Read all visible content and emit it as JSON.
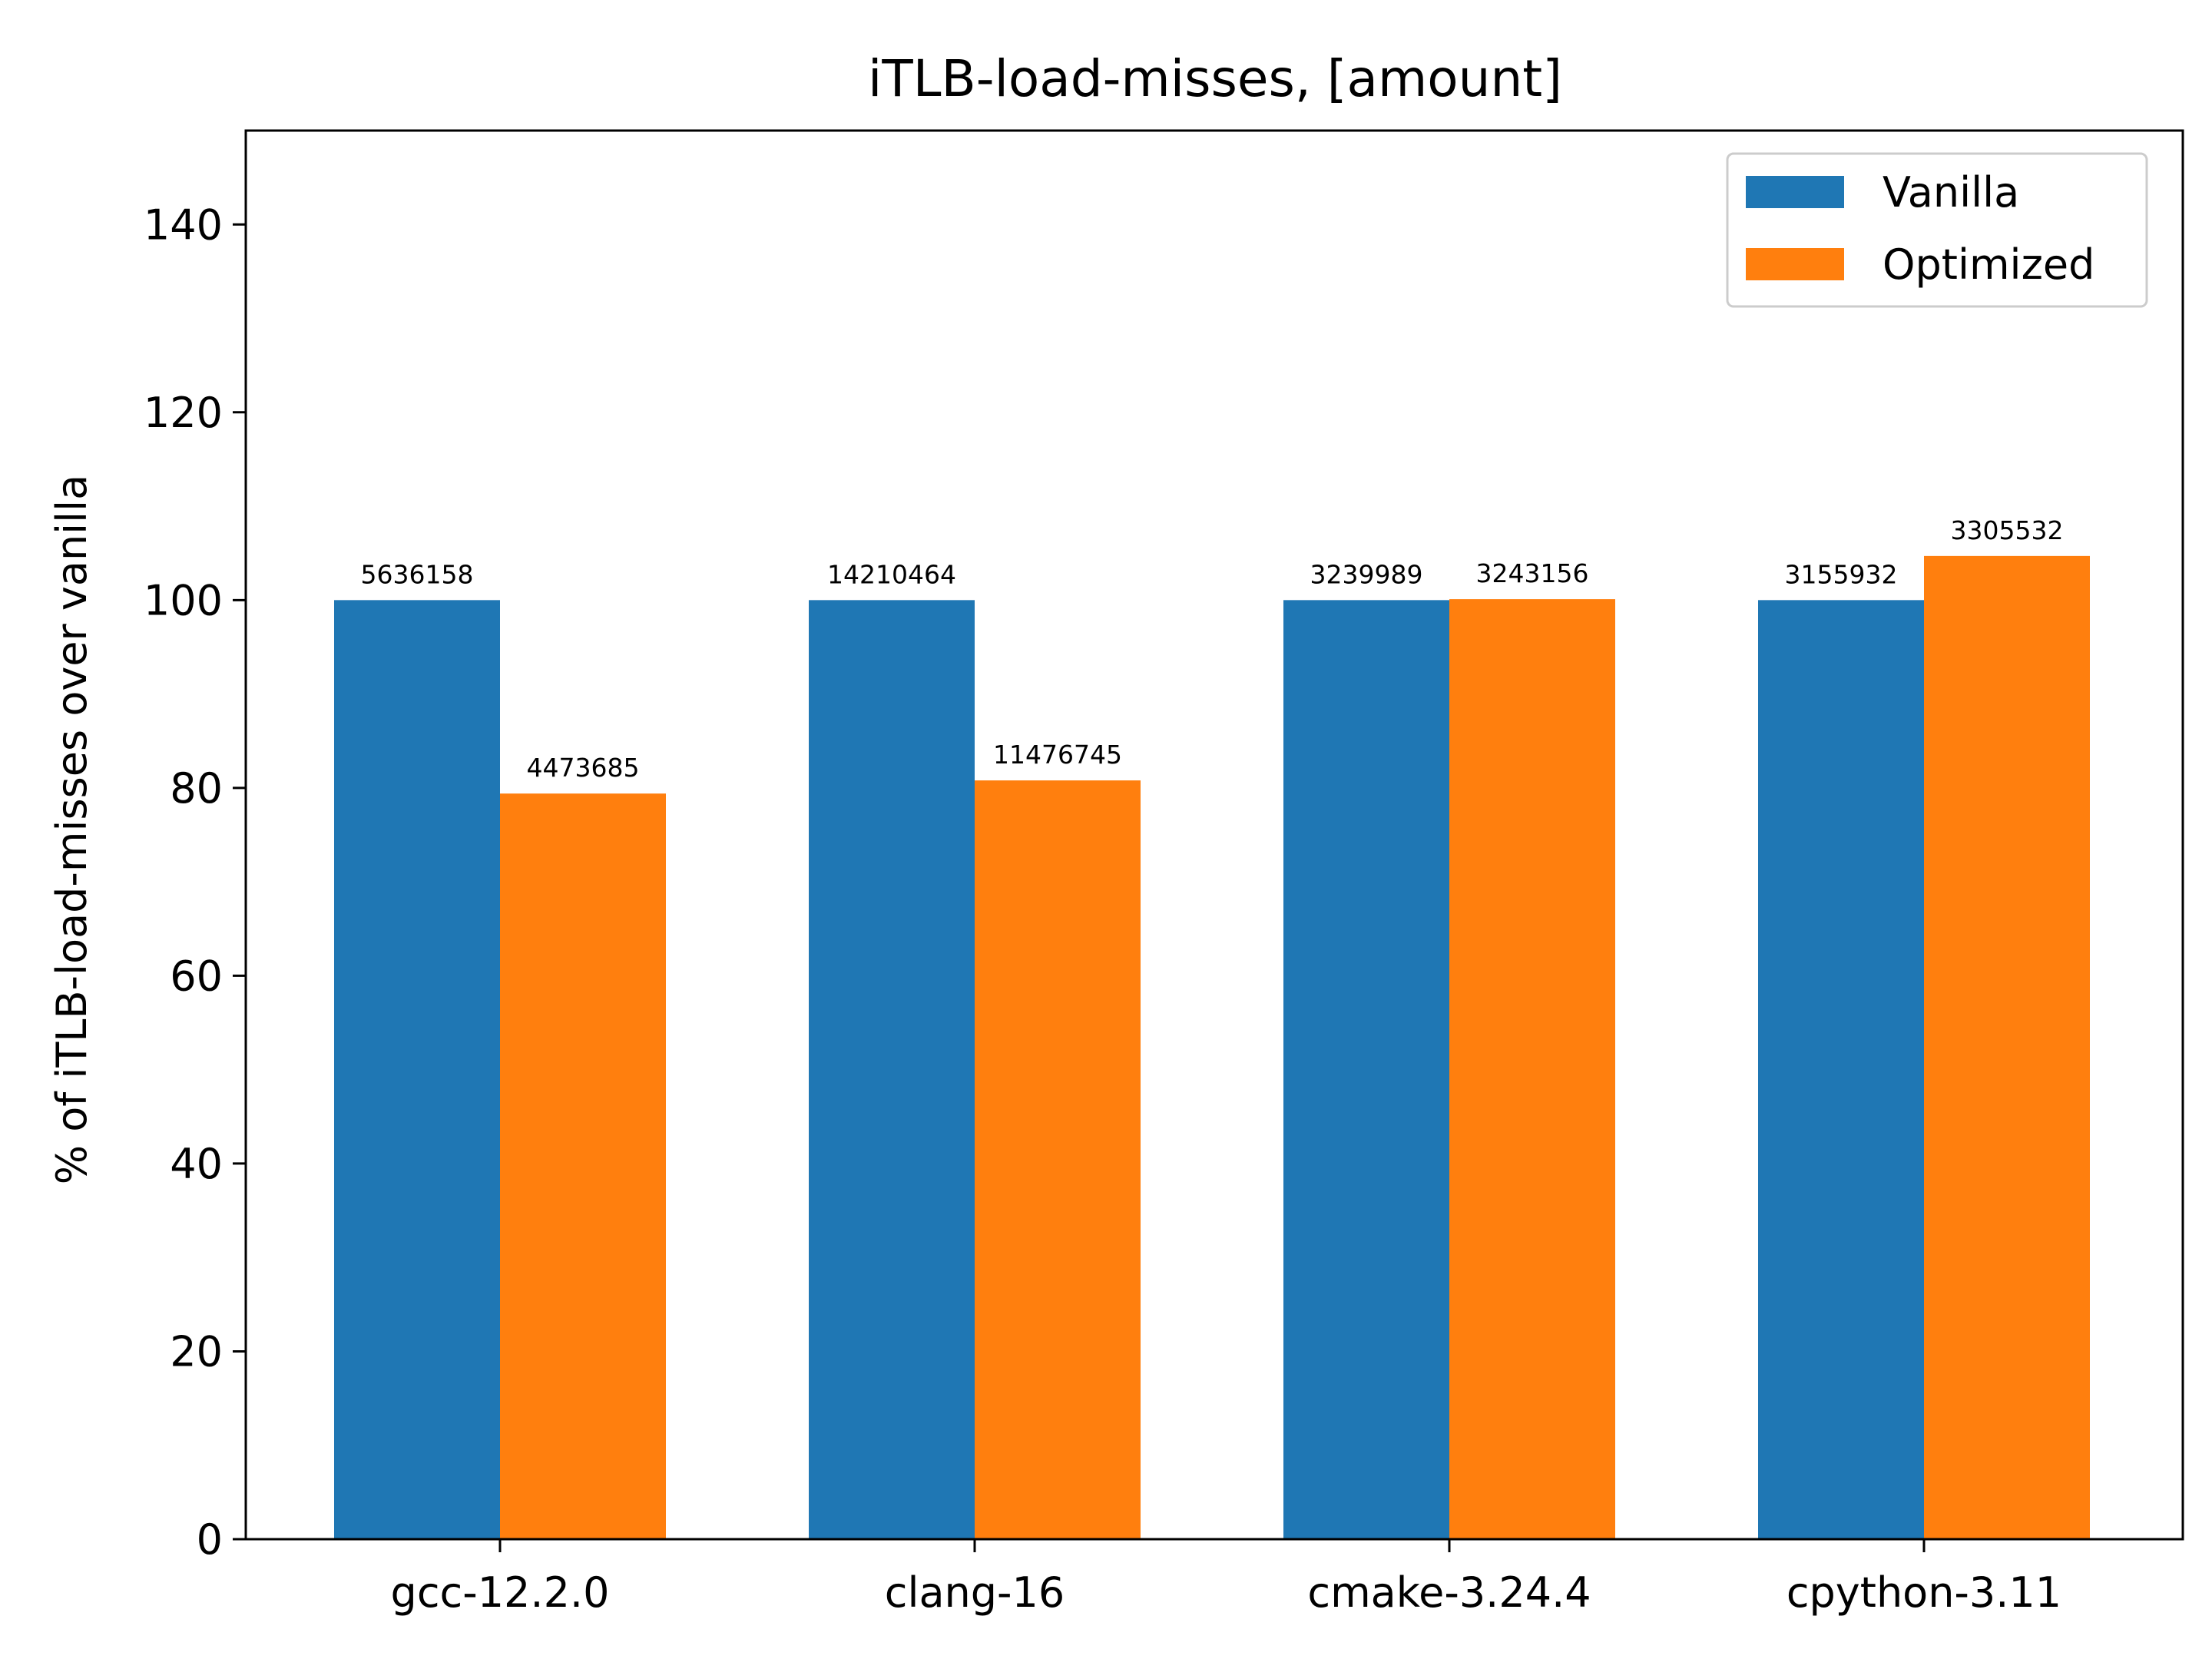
{
  "chart_data": {
    "type": "bar",
    "title": "iTLB-load-misses, [amount]",
    "xlabel": "",
    "ylabel": "% of iTLB-load-misses over vanilla",
    "ylim": [
      0,
      150
    ],
    "yticks": [
      0,
      20,
      40,
      60,
      80,
      100,
      120,
      140
    ],
    "grid": false,
    "legend_position": "top-right",
    "categories": [
      "gcc-12.2.0",
      "clang-16",
      "cmake-3.24.4",
      "cpython-3.11"
    ],
    "series": [
      {
        "name": "Vanilla",
        "color": "#1f77b4",
        "values": [
          100,
          100,
          100,
          100
        ],
        "labels": [
          "5636158",
          "14210464",
          "3239989",
          "3155932"
        ]
      },
      {
        "name": "Optimized",
        "color": "#ff7f0e",
        "values": [
          79.4,
          80.8,
          100.1,
          104.7
        ],
        "labels": [
          "4473685",
          "11476745",
          "3243156",
          "3305532"
        ]
      }
    ]
  }
}
